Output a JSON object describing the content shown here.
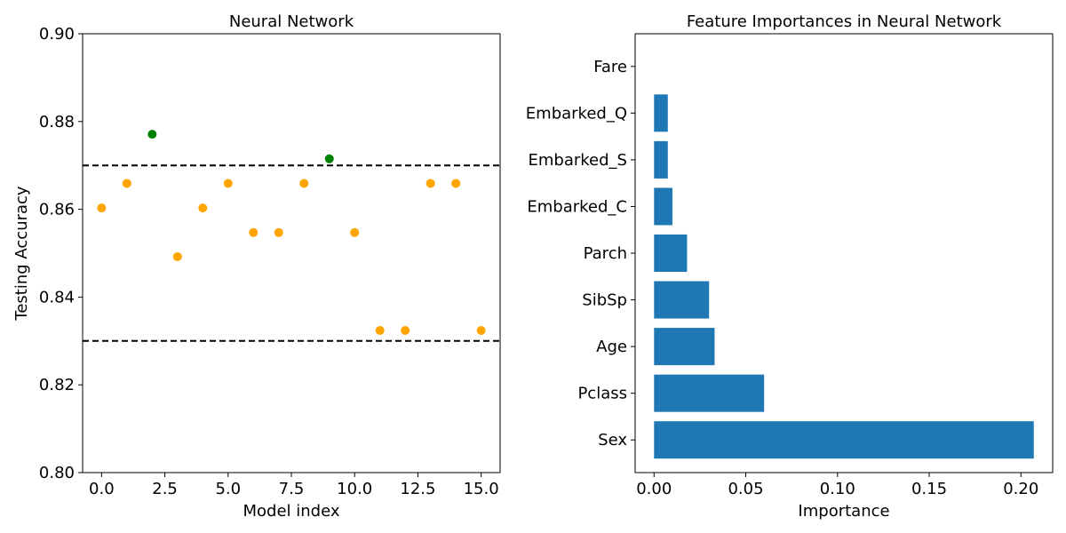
{
  "chart_data": [
    {
      "type": "scatter",
      "title": "Neural Network",
      "xlabel": "Model index",
      "ylabel": "Testing Accuracy",
      "xlim": [
        -0.75,
        15.75
      ],
      "ylim": [
        0.8,
        0.9
      ],
      "xticks": [
        0.0,
        2.5,
        5.0,
        7.5,
        10.0,
        12.5,
        15.0
      ],
      "xtick_labels": [
        "0.0",
        "2.5",
        "5.0",
        "7.5",
        "10.0",
        "12.5",
        "15.0"
      ],
      "yticks": [
        0.8,
        0.82,
        0.84,
        0.86,
        0.88,
        0.9
      ],
      "ytick_labels": [
        "0.80",
        "0.82",
        "0.84",
        "0.86",
        "0.88",
        "0.90"
      ],
      "reference_lines": [
        0.87,
        0.83
      ],
      "x": [
        0,
        1,
        2,
        3,
        4,
        5,
        6,
        7,
        8,
        9,
        10,
        11,
        12,
        13,
        14,
        15
      ],
      "y": [
        0.8603,
        0.8659,
        0.8771,
        0.8492,
        0.8603,
        0.8659,
        0.8547,
        0.8547,
        0.8659,
        0.8715,
        0.8547,
        0.8324,
        0.8324,
        0.8659,
        0.8659,
        0.8324
      ],
      "point_colors": [
        "#ffa500",
        "#ffa500",
        "#008000",
        "#ffa500",
        "#ffa500",
        "#ffa500",
        "#ffa500",
        "#ffa500",
        "#ffa500",
        "#008000",
        "#ffa500",
        "#ffa500",
        "#ffa500",
        "#ffa500",
        "#ffa500",
        "#ffa500"
      ],
      "grid": false
    },
    {
      "type": "bar",
      "orientation": "horizontal",
      "title": "Feature Importances in Neural Network",
      "xlabel": "Importance",
      "ylabel": "",
      "categories": [
        "Sex",
        "Pclass",
        "Age",
        "SibSp",
        "Parch",
        "Embarked_C",
        "Embarked_S",
        "Embarked_Q",
        "Fare"
      ],
      "values": [
        0.207,
        0.06,
        0.033,
        0.03,
        0.018,
        0.01,
        0.0075,
        0.0075,
        0.0
      ],
      "xlim": [
        -0.0103,
        0.2173
      ],
      "xticks": [
        0.0,
        0.05,
        0.1,
        0.15,
        0.2
      ],
      "xtick_labels": [
        "0.00",
        "0.05",
        "0.10",
        "0.15",
        "0.20"
      ],
      "bar_color": "#1f77b4",
      "grid": false
    }
  ]
}
